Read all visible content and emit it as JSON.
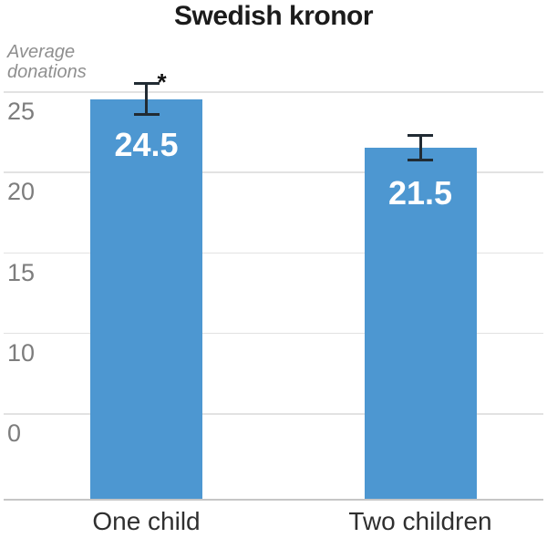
{
  "chart": {
    "title": "Swedish kronor",
    "ylabel_lines": [
      "Average",
      "donations"
    ]
  },
  "chart_data": {
    "type": "bar",
    "title": "Swedish kronor",
    "ylabel": "Average donations",
    "xlabel": "",
    "categories": [
      "One child",
      "Two children"
    ],
    "values": [
      24.5,
      21.5
    ],
    "value_labels": [
      "24.5",
      "21.5"
    ],
    "error_bars_plus_minus": [
      1.05,
      0.85
    ],
    "significance_markers": [
      "*",
      ""
    ],
    "y_tick_labels": [
      "25",
      "20",
      "15",
      "10",
      "0"
    ],
    "grid": true,
    "legend": false,
    "layout_hints": {
      "tick_labels_below_gridlines": true,
      "equal_tick_spacing": true,
      "zero_label_on_fifth_gridline": true,
      "bars_extend_below_zero_gridline_to_baseline": true,
      "value_labels_inside_bar_tops": true
    }
  },
  "colors": {
    "bar": "#4d97d1",
    "value_label": "#ffffff",
    "title": "#1b1b1b",
    "tick_label": "#7d7d7d",
    "axis_label": "#8f8f8f",
    "category_label": "#2f2f2f",
    "gridline": "#e2e2e2",
    "baseline": "#c6c6c6",
    "error_bar": "#212b33",
    "significance": "#111111"
  }
}
